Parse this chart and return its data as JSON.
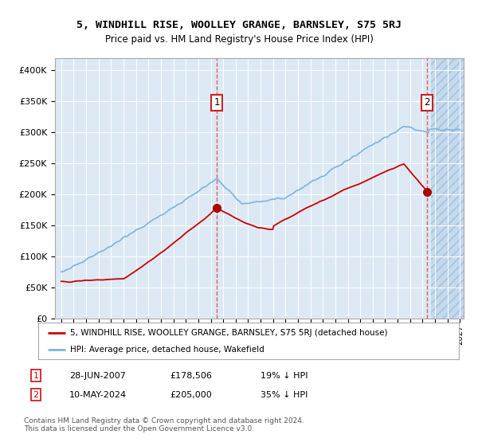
{
  "title": "5, WINDHILL RISE, WOOLLEY GRANGE, BARNSLEY, S75 5RJ",
  "subtitle": "Price paid vs. HM Land Registry's House Price Index (HPI)",
  "legend_line1": "5, WINDHILL RISE, WOOLLEY GRANGE, BARNSLEY, S75 5RJ (detached house)",
  "legend_line2": "HPI: Average price, detached house, Wakefield",
  "annotation1_date": "28-JUN-2007",
  "annotation1_price": "£178,506",
  "annotation1_hpi": "19% ↓ HPI",
  "annotation2_date": "10-MAY-2024",
  "annotation2_price": "£205,000",
  "annotation2_hpi": "35% ↓ HPI",
  "footnote": "Contains HM Land Registry data © Crown copyright and database right 2024.\nThis data is licensed under the Open Government Licence v3.0.",
  "yticks": [
    0,
    50000,
    100000,
    150000,
    200000,
    250000,
    300000,
    350000,
    400000
  ],
  "background_color": "#dce9f5",
  "red_line_color": "#cc0000",
  "blue_line_color": "#7fb3d9",
  "sale1_year": 2007.5,
  "sale2_year": 2024.37,
  "sale1_price": 178506,
  "sale2_price": 205000
}
